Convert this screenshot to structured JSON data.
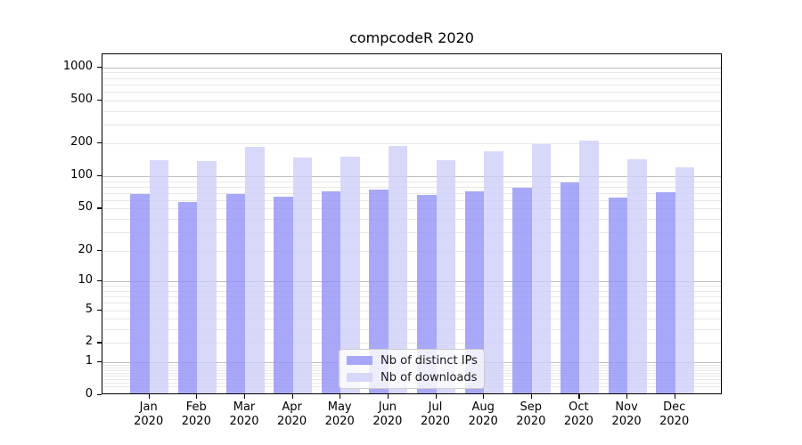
{
  "figure": {
    "title": "compcodeR 2020"
  },
  "chart_data": {
    "type": "bar",
    "title": "compcodeR 2020",
    "categories": [
      "Jan",
      "Feb",
      "Mar",
      "Apr",
      "May",
      "Jun",
      "Jul",
      "Aug",
      "Sep",
      "Oct",
      "Nov",
      "Dec"
    ],
    "category_year": "2020",
    "series": [
      {
        "name": "Nb of distinct IPs",
        "color": "rgba(146,146,249,0.8)",
        "values": [
          66,
          56,
          66,
          62,
          70,
          73,
          65,
          70,
          75,
          85,
          61,
          68
        ]
      },
      {
        "name": "Nb of downloads",
        "color": "rgba(206,206,249,0.8)",
        "values": [
          136,
          132,
          181,
          143,
          145,
          185,
          135,
          165,
          191,
          204,
          138,
          117
        ]
      }
    ],
    "xlabel": "",
    "ylabel": "",
    "yscale": "log1p",
    "ylim": [
      0,
      1320
    ],
    "yticks": [
      0,
      1,
      2,
      5,
      10,
      20,
      50,
      100,
      200,
      500,
      1000
    ],
    "grid": true,
    "legend_position": "lower center",
    "colors": {
      "grid_minor": "#e8e8e8",
      "grid_major": "#bdbdbd",
      "spine": "#000000",
      "legend_border": "#cccccc",
      "legend_bg": "rgba(255,255,255,0.8)",
      "text": "#000000"
    }
  }
}
